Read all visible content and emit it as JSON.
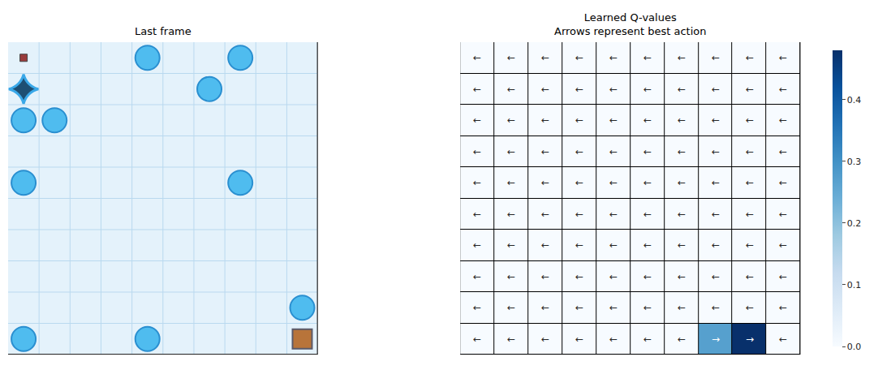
{
  "frame": {
    "title": "Last frame",
    "size": 10,
    "agent": [
      0,
      0
    ],
    "goal": [
      9,
      9
    ],
    "broken_hole": [
      1,
      0
    ],
    "holes": [
      [
        0,
        4
      ],
      [
        0,
        7
      ],
      [
        1,
        6
      ],
      [
        2,
        0
      ],
      [
        2,
        1
      ],
      [
        4,
        0
      ],
      [
        4,
        7
      ],
      [
        8,
        9
      ],
      [
        9,
        0
      ],
      [
        9,
        4
      ]
    ]
  },
  "chart_data": {
    "type": "heatmap",
    "title": [
      "Learned Q-values",
      "Arrows represent best action"
    ],
    "color": "Blues",
    "tick_labels": false,
    "cells": [
      [
        0,
        0,
        0,
        0,
        0,
        0,
        0,
        0,
        0,
        0
      ],
      [
        0,
        0,
        0,
        0,
        0,
        0,
        0,
        0,
        0,
        0
      ],
      [
        0,
        0,
        0,
        0,
        0,
        0,
        0,
        0,
        0,
        0
      ],
      [
        0,
        0,
        0,
        0,
        0,
        0,
        0,
        0,
        0,
        0
      ],
      [
        0,
        0,
        0,
        0,
        0,
        0,
        0,
        0,
        0,
        0
      ],
      [
        0,
        0,
        0,
        0,
        0,
        0,
        0,
        0,
        0,
        0
      ],
      [
        0,
        0,
        0,
        0,
        0,
        0,
        0,
        0,
        0,
        0
      ],
      [
        0,
        0,
        0,
        0,
        0,
        0,
        0,
        0,
        0,
        0
      ],
      [
        0,
        0,
        0,
        0,
        0,
        0,
        0,
        0,
        0,
        0
      ],
      [
        0,
        0,
        0,
        0,
        0,
        0,
        0,
        0.27,
        0.48,
        0
      ]
    ],
    "cell_labels": [
      [
        "←",
        "←",
        "←",
        "←",
        "←",
        "←",
        "←",
        "←",
        "←",
        "←"
      ],
      [
        "←",
        "←",
        "←",
        "←",
        "←",
        "←",
        "←",
        "←",
        "←",
        "←"
      ],
      [
        "←",
        "←",
        "←",
        "←",
        "←",
        "←",
        "←",
        "←",
        "←",
        "←"
      ],
      [
        "←",
        "←",
        "←",
        "←",
        "←",
        "←",
        "←",
        "←",
        "←",
        "←"
      ],
      [
        "←",
        "←",
        "←",
        "←",
        "←",
        "←",
        "←",
        "←",
        "←",
        "←"
      ],
      [
        "←",
        "←",
        "←",
        "←",
        "←",
        "←",
        "←",
        "←",
        "←",
        "←"
      ],
      [
        "←",
        "←",
        "←",
        "←",
        "←",
        "←",
        "←",
        "←",
        "←",
        "←"
      ],
      [
        "←",
        "←",
        "←",
        "←",
        "←",
        "←",
        "←",
        "←",
        "←",
        "←"
      ],
      [
        "←",
        "←",
        "←",
        "←",
        "←",
        "←",
        "←",
        "←",
        "←",
        "←"
      ],
      [
        "←",
        "←",
        "←",
        "←",
        "←",
        "←",
        "←",
        "→",
        "→",
        "←"
      ]
    ],
    "colorbar": {
      "range": [
        0,
        0.48
      ],
      "ticks": [
        {
          "value": 0,
          "label": "0.0"
        },
        {
          "value": 0.1,
          "label": "0.1"
        },
        {
          "value": 0.2,
          "label": "0.2"
        },
        {
          "value": 0.3,
          "label": "0.3"
        },
        {
          "value": 0.4,
          "label": "0.4"
        }
      ]
    }
  }
}
